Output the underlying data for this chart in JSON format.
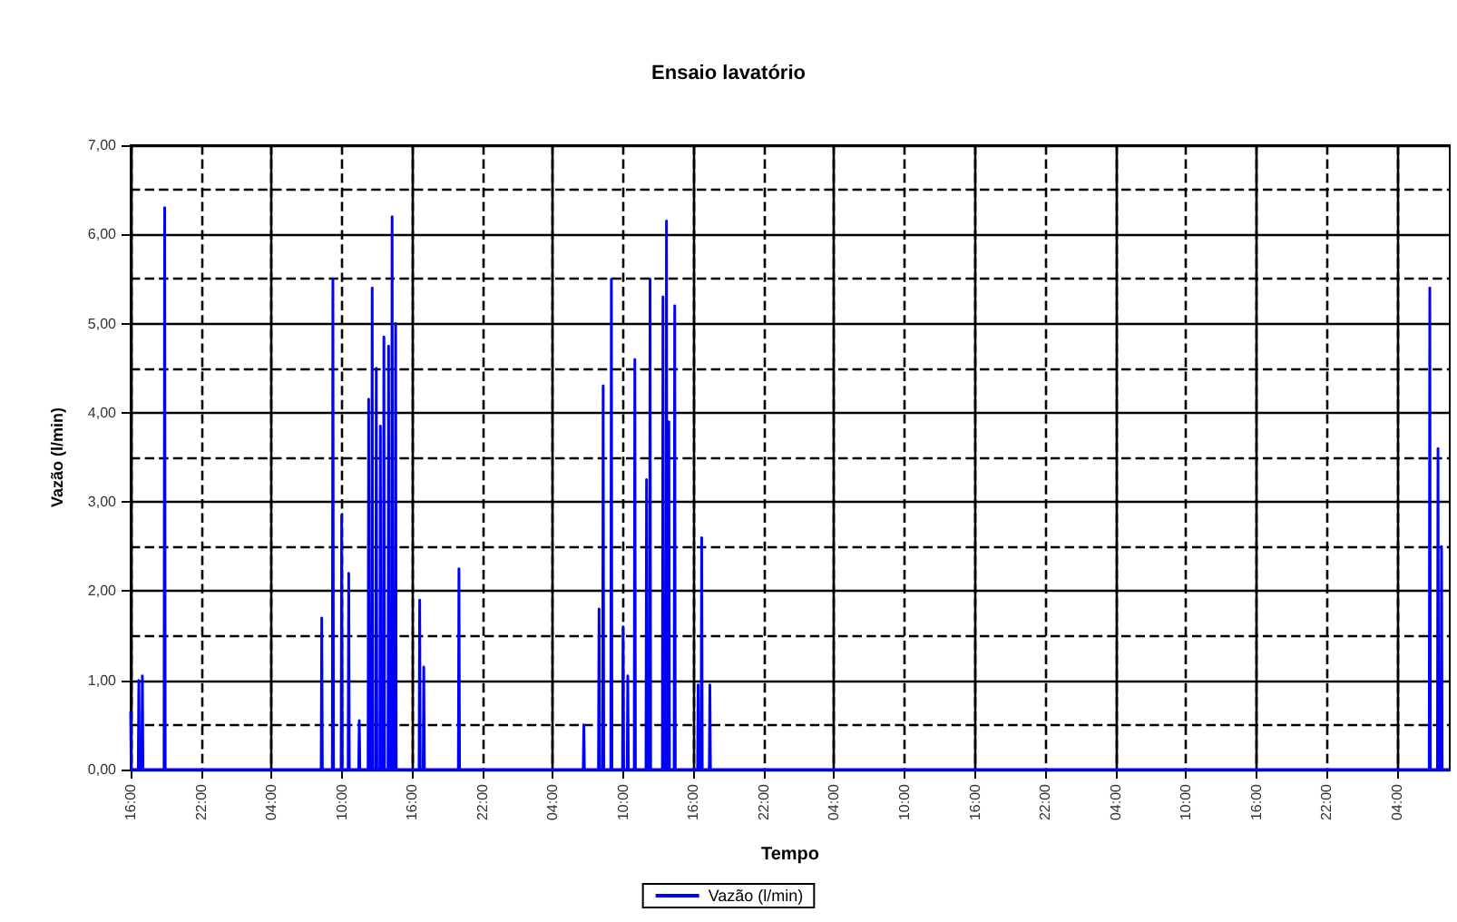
{
  "chart_data": {
    "type": "line",
    "title": "Ensaio lavatório",
    "xlabel": "Tempo",
    "ylabel": "Vazão (l/min)",
    "x": [
      "--01-01T16:00",
      "--01-01T16:03",
      "--01-01T16:39",
      "--01-01T16:42",
      "--01-01T16:45",
      "--01-01T16:57",
      "--01-01T17:00",
      "--01-01T17:03",
      "--01-01T18:51",
      "--01-01T18:54",
      "--01-01T18:57",
      "--01-02T08:15",
      "--01-02T08:18",
      "--01-02T08:21",
      "--01-02T09:12",
      "--01-02T09:15",
      "--01-02T09:18",
      "--01-02T09:57",
      "--01-02T10:00",
      "--01-02T10:03",
      "--01-02T10:33",
      "--01-02T10:36",
      "--01-02T10:39",
      "--01-02T11:27",
      "--01-02T11:30",
      "--01-02T11:33",
      "--01-02T12:15",
      "--01-02T12:18",
      "--01-02T12:21",
      "--01-02T12:33",
      "--01-02T12:36",
      "--01-02T12:39",
      "--01-02T12:54",
      "--01-02T12:57",
      "--01-02T13:00",
      "--01-02T13:15",
      "--01-02T13:18",
      "--01-02T13:21",
      "--01-02T13:33",
      "--01-02T13:36",
      "--01-02T13:39",
      "--01-02T13:57",
      "--01-02T14:00",
      "--01-02T14:03",
      "--01-02T14:15",
      "--01-02T14:18",
      "--01-02T14:21",
      "--01-02T14:33",
      "--01-02T14:36",
      "--01-02T14:39",
      "--01-02T16:36",
      "--01-02T16:39",
      "--01-02T16:42",
      "--01-02T16:57",
      "--01-02T17:00",
      "--01-02T17:03",
      "--01-02T19:57",
      "--01-02T20:00",
      "--01-02T20:03",
      "--01-03T06:36",
      "--01-03T06:39",
      "--01-03T06:42",
      "--01-03T07:54",
      "--01-03T07:57",
      "--01-03T08:00",
      "--01-03T08:15",
      "--01-03T08:18",
      "--01-03T08:21",
      "--01-03T08:57",
      "--01-03T09:00",
      "--01-03T09:03",
      "--01-03T09:57",
      "--01-03T10:00",
      "--01-03T10:03",
      "--01-03T10:21",
      "--01-03T10:24",
      "--01-03T10:27",
      "--01-03T10:57",
      "--01-03T11:00",
      "--01-03T11:03",
      "--01-03T11:57",
      "--01-03T12:00",
      "--01-03T12:03",
      "--01-03T12:15",
      "--01-03T12:18",
      "--01-03T12:21",
      "--01-03T13:21",
      "--01-03T13:24",
      "--01-03T13:27",
      "--01-03T13:39",
      "--01-03T13:42",
      "--01-03T13:45",
      "--01-03T13:51",
      "--01-03T13:54",
      "--01-03T13:57",
      "--01-03T14:21",
      "--01-03T14:24",
      "--01-03T14:27",
      "--01-03T16:21",
      "--01-03T16:24",
      "--01-03T16:27",
      "--01-03T16:39",
      "--01-03T16:42",
      "--01-03T16:45",
      "--01-03T17:21",
      "--01-03T17:24",
      "--01-03T17:27",
      "--01-06T06:45",
      "--01-06T06:48",
      "--01-06T06:51",
      "--01-06T07:27",
      "--01-06T07:30",
      "--01-06T07:33",
      "--01-06T07:45",
      "--01-06T07:48",
      "--01-06T07:51",
      "--01-06T08:30"
    ],
    "series": [
      {
        "name": "Vazão (l/min)",
        "color": "#0000ff",
        "values": [
          0.65,
          0,
          0,
          1.0,
          0,
          0,
          1.05,
          0,
          0,
          6.3,
          0,
          0,
          1.7,
          0,
          0,
          5.5,
          0,
          0,
          2.85,
          0,
          0,
          2.2,
          0,
          0,
          0.55,
          0,
          0,
          4.15,
          0,
          0,
          5.4,
          0,
          0,
          4.5,
          0,
          0,
          3.85,
          0,
          0,
          4.85,
          0,
          0,
          4.75,
          0,
          0,
          6.2,
          0,
          0,
          5.0,
          0,
          0,
          1.9,
          0,
          0,
          1.15,
          0,
          0,
          2.25,
          0,
          0,
          0.5,
          0,
          0,
          1.8,
          0,
          0,
          4.3,
          0,
          0,
          5.5,
          0,
          0,
          1.6,
          0,
          0,
          1.05,
          0,
          0,
          4.6,
          0,
          0,
          3.25,
          0,
          0,
          5.5,
          0,
          0,
          5.3,
          0,
          0,
          6.15,
          0,
          0,
          3.9,
          0,
          0,
          5.2,
          0,
          0,
          0.95,
          0,
          0,
          2.6,
          0,
          0,
          0.95,
          0,
          0,
          5.4,
          0,
          0,
          3.6,
          0,
          0,
          2.5,
          0,
          0
        ]
      }
    ],
    "xlim": [
      "--01-01T16:00",
      "--01-06T08:30"
    ],
    "xticks": [
      {
        "value": "--01-01T16:00",
        "label": "16:00"
      },
      {
        "value": "--01-01T22:00",
        "label": "22:00"
      },
      {
        "value": "--01-02T04:00",
        "label": "04:00"
      },
      {
        "value": "--01-02T10:00",
        "label": "10:00"
      },
      {
        "value": "--01-02T16:00",
        "label": "16:00"
      },
      {
        "value": "--01-02T22:00",
        "label": "22:00"
      },
      {
        "value": "--01-03T04:00",
        "label": "04:00"
      },
      {
        "value": "--01-03T10:00",
        "label": "10:00"
      },
      {
        "value": "--01-03T16:00",
        "label": "16:00"
      },
      {
        "value": "--01-03T22:00",
        "label": "22:00"
      },
      {
        "value": "--01-04T04:00",
        "label": "04:00"
      },
      {
        "value": "--01-04T10:00",
        "label": "10:00"
      },
      {
        "value": "--01-04T16:00",
        "label": "16:00"
      },
      {
        "value": "--01-04T22:00",
        "label": "22:00"
      },
      {
        "value": "--01-05T04:00",
        "label": "04:00"
      },
      {
        "value": "--01-05T10:00",
        "label": "10:00"
      },
      {
        "value": "--01-05T16:00",
        "label": "16:00"
      },
      {
        "value": "--01-05T22:00",
        "label": "22:00"
      },
      {
        "value": "--01-06T04:00",
        "label": "04:00"
      }
    ],
    "ylim": [
      0,
      7
    ],
    "yticks": [
      {
        "value": 0,
        "label": "0,00"
      },
      {
        "value": 0.5,
        "label": null
      },
      {
        "value": 1,
        "label": "1,00"
      },
      {
        "value": 1.5,
        "label": null
      },
      {
        "value": 2,
        "label": "2,00"
      },
      {
        "value": 2.5,
        "label": null
      },
      {
        "value": 3,
        "label": "3,00"
      },
      {
        "value": 3.5,
        "label": null
      },
      {
        "value": 4,
        "label": "4,00"
      },
      {
        "value": 4.5,
        "label": null
      },
      {
        "value": 5,
        "label": "5,00"
      },
      {
        "value": 5.5,
        "label": null
      },
      {
        "value": 6,
        "label": "6,00"
      },
      {
        "value": 6.5,
        "label": null
      },
      {
        "value": 7,
        "label": "7,00"
      }
    ],
    "grid": true,
    "legend": "bottom",
    "marker": "none",
    "line_style": "solid"
  }
}
